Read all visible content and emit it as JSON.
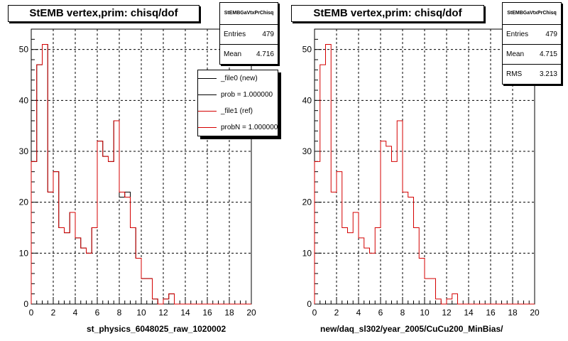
{
  "colors": {
    "new": "#000000",
    "ref": "#d40000",
    "grid": "#000000"
  },
  "panels": [
    {
      "title": "StEMB  vertex,prim: chisq/dof",
      "stats": {
        "name": "StEMBGaVtxPrChisq",
        "rows": [
          {
            "label": "Entries",
            "value": "479"
          },
          {
            "label": "Mean",
            "value": "4.716"
          }
        ]
      },
      "legend": [
        {
          "label": "_file0 (new)",
          "color": "#000000"
        },
        {
          "label": "prob = 1.000000",
          "color": "#000000"
        },
        {
          "label": "_file1 (ref)",
          "color": "#d40000"
        },
        {
          "label": "probN = 1.000000",
          "color": "#d40000"
        }
      ],
      "xlabel": "st_physics_6048025_raw_1020002"
    },
    {
      "title": "StEMB  vertex,prim: chisq/dof",
      "stats": {
        "name": "StEMBGaVtxPrChisq",
        "rows": [
          {
            "label": "Entries",
            "value": "479"
          },
          {
            "label": "Mean",
            "value": "4.715"
          },
          {
            "label": "RMS",
            "value": "3.213"
          }
        ]
      },
      "xlabel": "new/daq_sl302/year_2005/CuCu200_MinBias/"
    }
  ],
  "chart_data": [
    {
      "type": "histogram",
      "title": "StEMB  vertex,prim: chisq/dof",
      "xlabel": "st_physics_6048025_raw_1020002",
      "xlim": [
        0,
        20
      ],
      "ylim": [
        0,
        54
      ],
      "xticks": [
        "0",
        "2",
        "4",
        "6",
        "8",
        "10",
        "12",
        "14",
        "16",
        "18",
        "20"
      ],
      "yticks": [
        "0",
        "10",
        "20",
        "30",
        "40",
        "50"
      ],
      "bin_width": 0.5,
      "grid": true,
      "series": [
        {
          "name": "_file0 (new)",
          "color": "#000000",
          "values": [
            28,
            47,
            51,
            22,
            26,
            15,
            14,
            18,
            13,
            11,
            10,
            15,
            32,
            29,
            28,
            36,
            21,
            22,
            15,
            9,
            5,
            5,
            1,
            0,
            1,
            2,
            0,
            0,
            0,
            0,
            0,
            0,
            0,
            0,
            0,
            0,
            0,
            0,
            0,
            0
          ]
        },
        {
          "name": "_file1 (ref)",
          "color": "#d40000",
          "values": [
            28,
            47,
            51,
            22,
            26,
            15,
            14,
            18,
            13,
            11,
            10,
            15,
            32,
            29,
            28,
            36,
            22,
            21,
            15,
            9,
            5,
            5,
            1,
            0,
            1,
            2,
            0,
            0,
            0,
            0,
            0,
            0,
            0,
            0,
            0,
            0,
            0,
            0,
            0,
            0
          ]
        }
      ]
    },
    {
      "type": "histogram",
      "title": "StEMB  vertex,prim: chisq/dof",
      "xlabel": "new/daq_sl302/year_2005/CuCu200_MinBias/",
      "xlim": [
        0,
        20
      ],
      "ylim": [
        0,
        54
      ],
      "xticks": [
        "0",
        "2",
        "4",
        "6",
        "8",
        "10",
        "12",
        "14",
        "16",
        "18",
        "20"
      ],
      "yticks": [
        "0",
        "10",
        "20",
        "30",
        "40",
        "50"
      ],
      "bin_width": 0.5,
      "grid": true,
      "series": [
        {
          "name": "",
          "color": "#d40000",
          "values": [
            28,
            47,
            51,
            22,
            26,
            15,
            14,
            18,
            13,
            11,
            10,
            15,
            32,
            31,
            28,
            36,
            22,
            21,
            15,
            9,
            5,
            5,
            1,
            0,
            1,
            2,
            0,
            0,
            0,
            0,
            0,
            0,
            0,
            0,
            0,
            0,
            0,
            0,
            0,
            0
          ]
        }
      ]
    }
  ]
}
